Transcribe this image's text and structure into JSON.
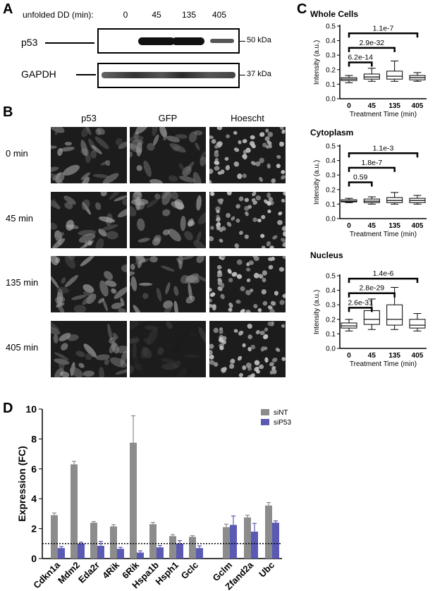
{
  "panels": {
    "a": {
      "letter": "A",
      "header_label": "unfolded DD (min):",
      "lanes": [
        "0",
        "45",
        "135",
        "405"
      ],
      "bands": [
        {
          "name": "p53",
          "mw": "50 kDa",
          "intensity": [
            0.0,
            0.95,
            0.95,
            0.35
          ]
        },
        {
          "name": "GAPDH",
          "mw": "37 kDa",
          "intensity": [
            0.7,
            0.75,
            0.8,
            0.7
          ]
        }
      ]
    },
    "b": {
      "letter": "B",
      "columns": [
        "p53",
        "GFP",
        "Hoescht"
      ],
      "rows": [
        "0 min",
        "45 min",
        "135 min",
        "405 min"
      ]
    },
    "c": {
      "letter": "C"
    },
    "d": {
      "letter": "D"
    }
  },
  "chart_data": [
    {
      "type": "box",
      "title": "Whole Cells",
      "xlabel": "Treatment Time (min)",
      "ylabel": "Intensity (a.u.)",
      "categories": [
        "0",
        "45",
        "135",
        "405"
      ],
      "ylim": [
        0,
        0.5
      ],
      "yticks": [
        "0.0",
        "0.1",
        "0.2",
        "0.3",
        "0.4",
        "0.5"
      ],
      "boxes": [
        {
          "min": 0.11,
          "q1": 0.125,
          "median": 0.135,
          "q3": 0.145,
          "max": 0.16
        },
        {
          "min": 0.12,
          "q1": 0.135,
          "median": 0.15,
          "q3": 0.17,
          "max": 0.21
        },
        {
          "min": 0.12,
          "q1": 0.135,
          "median": 0.155,
          "q3": 0.19,
          "max": 0.26
        },
        {
          "min": 0.12,
          "q1": 0.13,
          "median": 0.145,
          "q3": 0.16,
          "max": 0.18
        }
      ],
      "comparisons": [
        {
          "from": 0,
          "to": 3,
          "y": 0.45,
          "label": "1.1e-7"
        },
        {
          "from": 0,
          "to": 2,
          "y": 0.35,
          "label": "2.9e-32"
        },
        {
          "from": 0,
          "to": 1,
          "y": 0.25,
          "label": "6.2e-14"
        }
      ]
    },
    {
      "type": "box",
      "title": "Cytoplasm",
      "xlabel": "Treatment Time (min)",
      "ylabel": "Intensity (a.u.)",
      "categories": [
        "0",
        "45",
        "135",
        "405"
      ],
      "ylim": [
        0,
        0.5
      ],
      "yticks": [
        "0.0",
        "0.1",
        "0.2",
        "0.3",
        "0.4",
        "0.5"
      ],
      "boxes": [
        {
          "min": 0.11,
          "q1": 0.115,
          "median": 0.12,
          "q3": 0.13,
          "max": 0.14
        },
        {
          "min": 0.1,
          "q1": 0.11,
          "median": 0.12,
          "q3": 0.135,
          "max": 0.15
        },
        {
          "min": 0.1,
          "q1": 0.11,
          "median": 0.125,
          "q3": 0.145,
          "max": 0.18
        },
        {
          "min": 0.1,
          "q1": 0.11,
          "median": 0.125,
          "q3": 0.14,
          "max": 0.16
        }
      ],
      "comparisons": [
        {
          "from": 0,
          "to": 3,
          "y": 0.45,
          "label": "1.1e-3"
        },
        {
          "from": 0,
          "to": 2,
          "y": 0.35,
          "label": "1.8e-7"
        },
        {
          "from": 0,
          "to": 1,
          "y": 0.25,
          "label": "0.59"
        }
      ]
    },
    {
      "type": "box",
      "title": "Nucleus",
      "xlabel": "Treatment Time (min)",
      "ylabel": "Intensity (a.u.)",
      "categories": [
        "0",
        "45",
        "135",
        "405"
      ],
      "ylim": [
        0,
        0.5
      ],
      "yticks": [
        "0.0",
        "0.1",
        "0.2",
        "0.3",
        "0.4",
        "0.5"
      ],
      "boxes": [
        {
          "min": 0.12,
          "q1": 0.14,
          "median": 0.155,
          "q3": 0.175,
          "max": 0.2
        },
        {
          "min": 0.13,
          "q1": 0.165,
          "median": 0.2,
          "q3": 0.26,
          "max": 0.34
        },
        {
          "min": 0.13,
          "q1": 0.16,
          "median": 0.2,
          "q3": 0.3,
          "max": 0.42
        },
        {
          "min": 0.12,
          "q1": 0.14,
          "median": 0.16,
          "q3": 0.2,
          "max": 0.24
        }
      ],
      "comparisons": [
        {
          "from": 0,
          "to": 3,
          "y": 0.48,
          "label": "1.4e-6"
        },
        {
          "from": 0,
          "to": 2,
          "y": 0.38,
          "label": "2.8e-29"
        },
        {
          "from": 0,
          "to": 1,
          "y": 0.28,
          "label": "2.6e-31"
        }
      ]
    },
    {
      "type": "bar",
      "xlabel": "",
      "ylabel": "Expression (FC)",
      "ylim": [
        0,
        10
      ],
      "yticks": [
        "0",
        "2",
        "4",
        "6",
        "8",
        "10"
      ],
      "reference_line": 1,
      "categories": [
        "Cdkn1a",
        "Mdm2",
        "Eda2r",
        "4Rik",
        "6Rik",
        "Hspa1b",
        "Hsph1",
        "Gclc",
        "Gclm",
        "Zfand2a",
        "Ubc"
      ],
      "series": [
        {
          "name": "siNT",
          "color": "#8c8c8c",
          "values": [
            2.9,
            6.3,
            2.4,
            2.15,
            7.75,
            2.3,
            1.5,
            1.45,
            2.1,
            2.75,
            3.55
          ],
          "errors": [
            0.15,
            0.2,
            0.08,
            0.12,
            1.8,
            0.12,
            0.1,
            0.08,
            0.2,
            0.15,
            0.2
          ]
        },
        {
          "name": "siP53",
          "color": "#5a5ab4",
          "values": [
            0.7,
            1.0,
            0.85,
            0.65,
            0.4,
            0.75,
            1.0,
            0.7,
            2.25,
            1.8,
            2.4
          ],
          "errors": [
            0.1,
            0.1,
            0.3,
            0.1,
            0.12,
            0.12,
            0.2,
            0.15,
            0.6,
            0.55,
            0.12
          ]
        }
      ]
    }
  ]
}
